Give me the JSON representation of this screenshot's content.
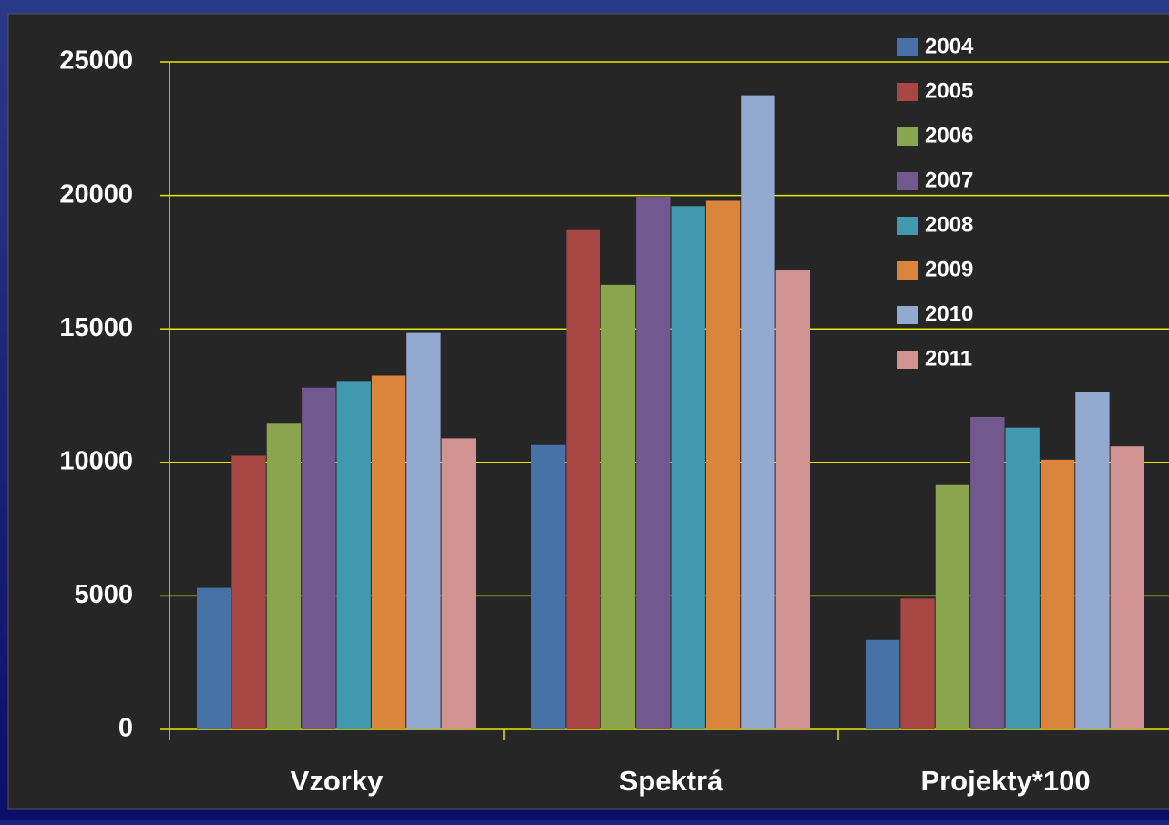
{
  "chart_data": {
    "type": "bar",
    "categories": [
      "Vzorky",
      "Spektrá",
      "Projekty*100"
    ],
    "series": [
      {
        "name": "2004",
        "color": "#4672a8",
        "values": [
          5300,
          10650,
          3350
        ]
      },
      {
        "name": "2005",
        "color": "#a84644",
        "values": [
          10250,
          18700,
          4900
        ]
      },
      {
        "name": "2006",
        "color": "#89a54e",
        "values": [
          11450,
          16650,
          9150
        ]
      },
      {
        "name": "2007",
        "color": "#71588f",
        "values": [
          12800,
          19950,
          11700
        ]
      },
      {
        "name": "2008",
        "color": "#4198af",
        "values": [
          13050,
          19600,
          11300
        ]
      },
      {
        "name": "2009",
        "color": "#db843d",
        "values": [
          13250,
          19800,
          10100
        ]
      },
      {
        "name": "2010",
        "color": "#93a9cf",
        "values": [
          14850,
          23750,
          12650
        ]
      },
      {
        "name": "2011",
        "color": "#d19392",
        "values": [
          10900,
          17200,
          10600
        ]
      }
    ],
    "ylim": [
      0,
      25000
    ],
    "yticks": [
      0,
      5000,
      10000,
      15000,
      20000,
      25000
    ],
    "grid": true,
    "legend": "top-right"
  }
}
